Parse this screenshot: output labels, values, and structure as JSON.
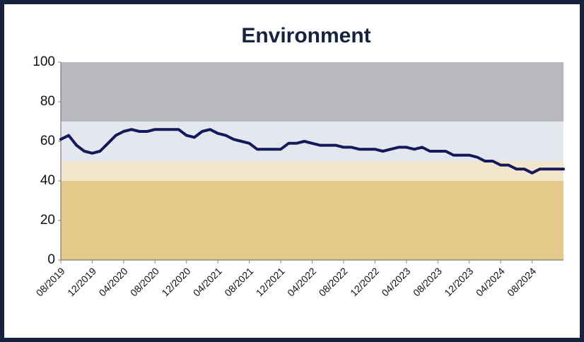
{
  "chart_data": {
    "type": "line",
    "title": "Environment",
    "categories": [
      "08/2019",
      null,
      null,
      null,
      "12/2019",
      null,
      null,
      null,
      "04/2020",
      null,
      null,
      null,
      "08/2020",
      null,
      null,
      null,
      "12/2020",
      null,
      null,
      null,
      "04/2021",
      null,
      null,
      null,
      "08/2021",
      null,
      null,
      null,
      "12/2021",
      null,
      null,
      null,
      "04/2022",
      null,
      null,
      null,
      "08/2022",
      null,
      null,
      null,
      "12/2022",
      null,
      null,
      null,
      "04/2023",
      null,
      null,
      null,
      "08/2023",
      null,
      null,
      null,
      "12/2023",
      null,
      null,
      null,
      "04/2024",
      null,
      null,
      null,
      "08/2024",
      null,
      null,
      null,
      null
    ],
    "values": [
      61,
      63,
      58,
      55,
      54,
      55,
      59,
      63,
      65,
      66,
      65,
      65,
      66,
      66,
      66,
      66,
      63,
      62,
      65,
      66,
      64,
      63,
      61,
      60,
      59,
      56,
      56,
      56,
      56,
      59,
      59,
      60,
      59,
      58,
      58,
      58,
      57,
      57,
      56,
      56,
      56,
      55,
      56,
      57,
      57,
      56,
      57,
      55,
      55,
      55,
      53,
      53,
      53,
      52,
      50,
      50,
      48,
      48,
      46,
      46,
      44,
      46,
      46,
      46,
      46
    ],
    "color": "#14195a",
    "ylim": [
      0,
      100
    ],
    "yticks": [
      0,
      20,
      40,
      60,
      80,
      100
    ],
    "bands": [
      {
        "from": 0,
        "to": 40,
        "color": "#e3c98a"
      },
      {
        "from": 40,
        "to": 50,
        "color": "#f2e6cc"
      },
      {
        "from": 50,
        "to": 70,
        "color": "#e4e7ee"
      },
      {
        "from": 70,
        "to": 100,
        "color": "#b8b9bf"
      }
    ]
  }
}
